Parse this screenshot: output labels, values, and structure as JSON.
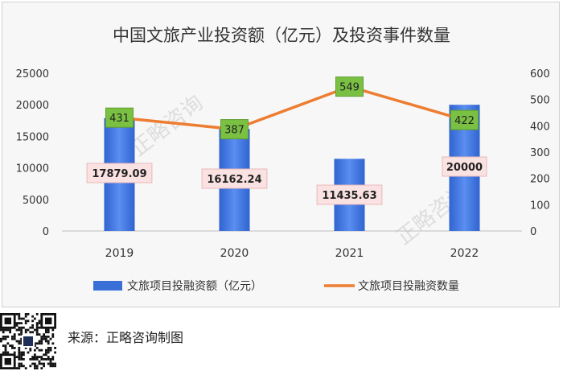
{
  "chart_data": {
    "type": "bar",
    "title": "中国文旅产业投资额（亿元）及投资事件数量",
    "categories": [
      "2019",
      "2020",
      "2021",
      "2022"
    ],
    "series": [
      {
        "name": "文旅项目投融资额（亿元）",
        "type": "bar",
        "axis": "left",
        "values": [
          17879.09,
          16162.24,
          11435.63,
          20000
        ],
        "labels": [
          "17879.09",
          "16162.24",
          "11435.63",
          "20000"
        ]
      },
      {
        "name": "文旅项目投融资数量",
        "type": "line",
        "axis": "right",
        "values": [
          431,
          387,
          549,
          422
        ],
        "labels": [
          "431",
          "387",
          "549",
          "422"
        ]
      }
    ],
    "y_left": {
      "min": 0,
      "max": 25000,
      "ticks": [
        "0",
        "5000",
        "10000",
        "15000",
        "20000",
        "25000"
      ]
    },
    "y_right": {
      "min": 0,
      "max": 600,
      "ticks": [
        "0",
        "100",
        "200",
        "300",
        "400",
        "500",
        "600"
      ]
    },
    "grid": false,
    "legend_position": "bottom",
    "colors": {
      "bar": "#3a6fd8",
      "line": "#ed7d31",
      "line_label_bg": "#7ac143",
      "bar_label_bg": "#fbe2e2"
    }
  },
  "watermark": "正略咨询",
  "source": "来源：正略咨询制图",
  "qr_icon": "qr-code-icon"
}
